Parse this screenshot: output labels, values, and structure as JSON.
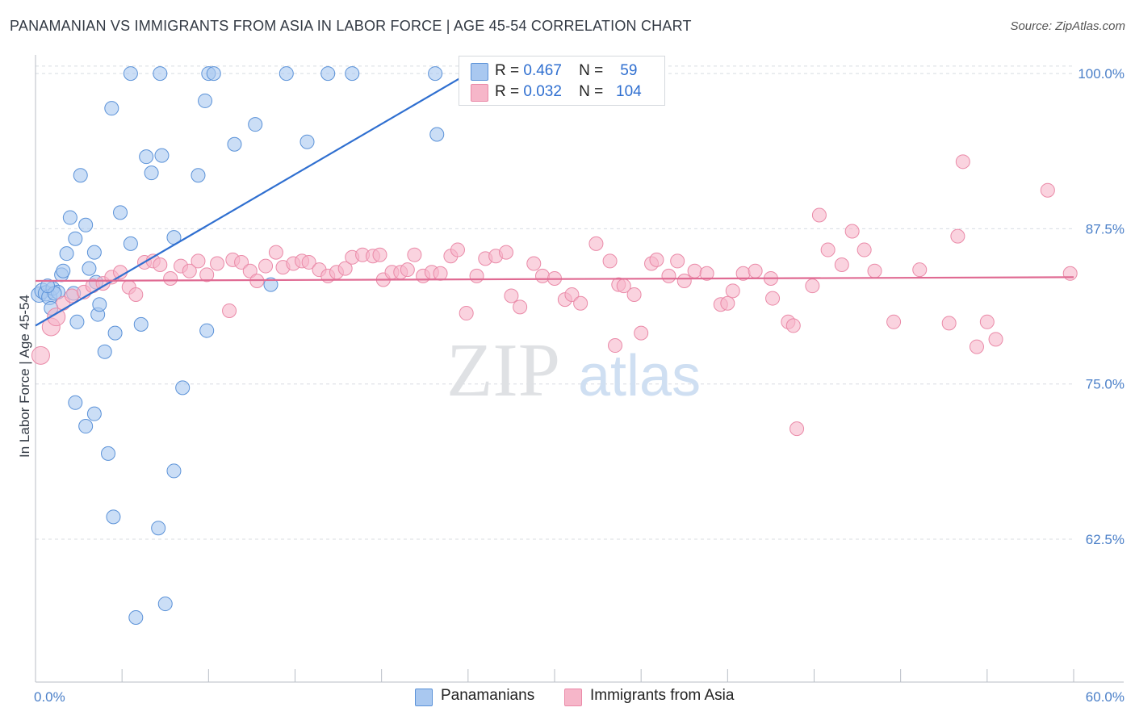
{
  "title": "PANAMANIAN VS IMMIGRANTS FROM ASIA IN LABOR FORCE | AGE 45-54 CORRELATION CHART",
  "source": "Source: ZipAtlas.com",
  "watermark": {
    "zip": "ZIP",
    "atlas": "atlas"
  },
  "legend": {
    "series1": {
      "r_label": "R =",
      "r_value": "0.467",
      "n_label": "N =",
      "n_value": "59",
      "color": "#a9c8f0"
    },
    "series2": {
      "r_label": "R =",
      "r_value": "0.032",
      "n_label": "N =",
      "n_value": "104",
      "color": "#f6b6c9"
    }
  },
  "bottom_legend": [
    {
      "label": "Panamanians",
      "color": "#a9c8f0"
    },
    {
      "label": "Immigrants from Asia",
      "color": "#f6b6c9"
    }
  ],
  "chart_data": {
    "type": "scatter",
    "title": "PANAMANIAN VS IMMIGRANTS FROM ASIA IN LABOR FORCE | AGE 45-54 CORRELATION CHART",
    "xlabel": "",
    "ylabel": "In Labor Force | Age 45-54",
    "xlim": [
      0,
      60
    ],
    "ylim": [
      51,
      101.5
    ],
    "x_tick_labels": [
      "0.0%",
      "60.0%"
    ],
    "y_ticks": [
      62.5,
      75.0,
      87.5,
      100.0
    ],
    "y_tick_labels": [
      "62.5%",
      "75.0%",
      "87.5%",
      "100.0%"
    ],
    "grid": true,
    "series": [
      {
        "name": "Panamanians",
        "color": "#a9c8f0",
        "stroke": "#5b92d8",
        "trend": {
          "x": [
            0,
            25
          ],
          "y": [
            79.7,
            100.0
          ],
          "color": "#2f6fd0"
        },
        "points": [
          [
            0.2,
            82.2
          ],
          [
            0.4,
            82.5
          ],
          [
            0.6,
            82.3
          ],
          [
            0.8,
            82.0
          ],
          [
            1.0,
            82.7
          ],
          [
            1.3,
            82.4
          ],
          [
            0.9,
            81.1
          ],
          [
            1.5,
            83.8
          ],
          [
            1.8,
            85.5
          ],
          [
            2.0,
            88.4
          ],
          [
            2.3,
            86.7
          ],
          [
            2.4,
            80.0
          ],
          [
            2.6,
            91.8
          ],
          [
            2.9,
            87.8
          ],
          [
            3.1,
            84.3
          ],
          [
            3.4,
            85.6
          ],
          [
            3.6,
            80.6
          ],
          [
            3.7,
            81.4
          ],
          [
            4.0,
            77.6
          ],
          [
            4.4,
            97.2
          ],
          [
            4.6,
            79.1
          ],
          [
            4.9,
            88.8
          ],
          [
            5.5,
            86.3
          ],
          [
            5.5,
            100.0
          ],
          [
            6.1,
            79.8
          ],
          [
            6.4,
            93.3
          ],
          [
            6.7,
            92.0
          ],
          [
            7.3,
            93.4
          ],
          [
            8.0,
            86.8
          ],
          [
            8.5,
            74.7
          ],
          [
            9.4,
            91.8
          ],
          [
            9.8,
            97.8
          ],
          [
            9.9,
            79.3
          ],
          [
            10.0,
            100.0
          ],
          [
            10.3,
            100.0
          ],
          [
            11.5,
            94.3
          ],
          [
            12.7,
            95.9
          ],
          [
            13.6,
            83.0
          ],
          [
            14.5,
            100.0
          ],
          [
            15.7,
            94.5
          ],
          [
            16.9,
            100.0
          ],
          [
            18.3,
            100.0
          ],
          [
            23.1,
            100.0
          ],
          [
            23.2,
            95.1
          ],
          [
            2.3,
            73.5
          ],
          [
            2.9,
            71.6
          ],
          [
            3.4,
            72.6
          ],
          [
            4.2,
            69.4
          ],
          [
            4.5,
            64.3
          ],
          [
            5.8,
            56.2
          ],
          [
            7.1,
            63.4
          ],
          [
            7.5,
            57.3
          ],
          [
            8.0,
            68.0
          ],
          [
            1.1,
            82.3
          ],
          [
            7.2,
            100.0
          ],
          [
            1.6,
            84.1
          ],
          [
            0.7,
            82.9
          ],
          [
            2.2,
            82.3
          ],
          [
            3.5,
            83.2
          ]
        ]
      },
      {
        "name": "Immigrants from Asia",
        "color": "#f6b6c9",
        "stroke": "#ea8aa8",
        "trend": {
          "x": [
            0,
            60
          ],
          "y": [
            83.3,
            83.6
          ],
          "color": "#e06b93"
        },
        "points": [
          [
            0.3,
            77.3
          ],
          [
            0.9,
            79.6
          ],
          [
            1.2,
            80.4
          ],
          [
            1.6,
            81.5
          ],
          [
            2.1,
            82.1
          ],
          [
            2.8,
            82.4
          ],
          [
            3.3,
            82.9
          ],
          [
            3.9,
            83.1
          ],
          [
            4.4,
            83.6
          ],
          [
            4.9,
            84.0
          ],
          [
            5.4,
            82.8
          ],
          [
            5.8,
            82.2
          ],
          [
            6.3,
            84.8
          ],
          [
            6.8,
            84.9
          ],
          [
            7.2,
            84.6
          ],
          [
            7.8,
            83.5
          ],
          [
            8.4,
            84.5
          ],
          [
            8.9,
            84.1
          ],
          [
            9.4,
            84.9
          ],
          [
            9.9,
            83.8
          ],
          [
            10.5,
            84.7
          ],
          [
            11.2,
            80.9
          ],
          [
            11.4,
            85.0
          ],
          [
            11.9,
            84.8
          ],
          [
            12.4,
            84.1
          ],
          [
            12.8,
            83.3
          ],
          [
            13.3,
            84.5
          ],
          [
            13.9,
            85.6
          ],
          [
            14.3,
            84.4
          ],
          [
            14.9,
            84.7
          ],
          [
            15.4,
            84.9
          ],
          [
            15.8,
            84.8
          ],
          [
            16.4,
            84.2
          ],
          [
            16.9,
            83.7
          ],
          [
            17.4,
            84.0
          ],
          [
            17.9,
            84.3
          ],
          [
            18.3,
            85.2
          ],
          [
            18.9,
            85.4
          ],
          [
            19.5,
            85.3
          ],
          [
            19.9,
            85.4
          ],
          [
            20.1,
            83.4
          ],
          [
            20.6,
            84.0
          ],
          [
            21.1,
            84.0
          ],
          [
            21.5,
            84.2
          ],
          [
            21.9,
            85.4
          ],
          [
            22.4,
            83.7
          ],
          [
            22.9,
            84.0
          ],
          [
            23.4,
            83.9
          ],
          [
            24.0,
            85.3
          ],
          [
            24.4,
            85.8
          ],
          [
            24.9,
            80.7
          ],
          [
            25.5,
            83.7
          ],
          [
            26.0,
            85.1
          ],
          [
            26.6,
            85.3
          ],
          [
            27.2,
            85.6
          ],
          [
            27.5,
            82.1
          ],
          [
            28.0,
            81.2
          ],
          [
            28.8,
            84.7
          ],
          [
            29.3,
            83.7
          ],
          [
            30.0,
            83.5
          ],
          [
            30.6,
            81.8
          ],
          [
            31.0,
            82.2
          ],
          [
            31.5,
            81.5
          ],
          [
            32.4,
            86.3
          ],
          [
            33.2,
            84.9
          ],
          [
            33.5,
            78.1
          ],
          [
            33.7,
            83.0
          ],
          [
            34.0,
            82.9
          ],
          [
            34.6,
            82.2
          ],
          [
            35.0,
            79.1
          ],
          [
            35.6,
            84.7
          ],
          [
            35.9,
            85.0
          ],
          [
            36.6,
            83.7
          ],
          [
            37.1,
            84.9
          ],
          [
            37.5,
            83.3
          ],
          [
            38.1,
            84.1
          ],
          [
            38.8,
            83.9
          ],
          [
            39.6,
            81.4
          ],
          [
            40.0,
            81.5
          ],
          [
            40.3,
            82.5
          ],
          [
            40.9,
            83.9
          ],
          [
            41.6,
            84.1
          ],
          [
            42.5,
            83.5
          ],
          [
            42.6,
            81.9
          ],
          [
            43.5,
            80.0
          ],
          [
            43.8,
            79.7
          ],
          [
            44.0,
            71.4
          ],
          [
            44.9,
            82.9
          ],
          [
            45.3,
            88.6
          ],
          [
            45.8,
            85.8
          ],
          [
            46.6,
            84.6
          ],
          [
            47.2,
            87.3
          ],
          [
            47.9,
            85.8
          ],
          [
            48.5,
            84.1
          ],
          [
            49.6,
            80.0
          ],
          [
            51.1,
            84.2
          ],
          [
            52.8,
            79.9
          ],
          [
            53.3,
            86.9
          ],
          [
            53.6,
            92.9
          ],
          [
            54.4,
            78.0
          ],
          [
            55.0,
            80.0
          ],
          [
            55.5,
            78.6
          ],
          [
            58.5,
            90.6
          ],
          [
            59.8,
            83.9
          ]
        ]
      }
    ]
  }
}
